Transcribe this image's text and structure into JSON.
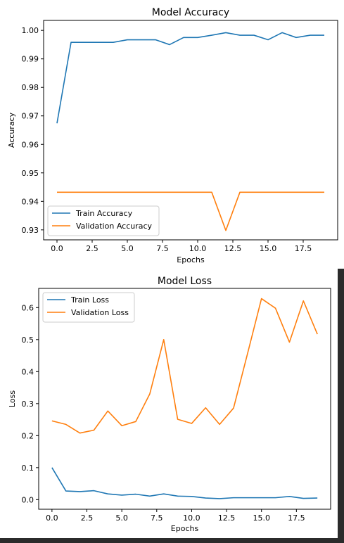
{
  "chart_data": [
    {
      "type": "line",
      "title": "Model Accuracy",
      "xlabel": "Epochs",
      "ylabel": "Accuracy",
      "xlim": [
        -0.95,
        19.95
      ],
      "ylim": [
        0.9265,
        1.0035
      ],
      "xticks": [
        0.0,
        2.5,
        5.0,
        7.5,
        10.0,
        12.5,
        15.0,
        17.5
      ],
      "xtick_labels": [
        "0.0",
        "2.5",
        "5.0",
        "7.5",
        "10.0",
        "12.5",
        "15.0",
        "17.5"
      ],
      "yticks": [
        0.93,
        0.94,
        0.95,
        0.96,
        0.97,
        0.98,
        0.99,
        1.0
      ],
      "ytick_labels": [
        "0.93",
        "0.94",
        "0.95",
        "0.96",
        "0.97",
        "0.98",
        "0.99",
        "1.00"
      ],
      "legend_position": "lower-left",
      "x": [
        0,
        1,
        2,
        3,
        4,
        5,
        6,
        7,
        8,
        9,
        10,
        11,
        12,
        13,
        14,
        15,
        16,
        17,
        18,
        19
      ],
      "series": [
        {
          "name": "Train Accuracy",
          "color": "#1f77b4",
          "values": [
            0.9674,
            0.9958,
            0.9958,
            0.9958,
            0.9958,
            0.9967,
            0.9967,
            0.9967,
            0.995,
            0.9975,
            0.9975,
            0.9983,
            0.9992,
            0.9983,
            0.9983,
            0.9967,
            0.9992,
            0.9975,
            0.9983,
            0.9983
          ]
        },
        {
          "name": "Validation Accuracy",
          "color": "#ff7f0e",
          "values": [
            0.9432,
            0.9432,
            0.9432,
            0.9432,
            0.9432,
            0.9432,
            0.9432,
            0.9432,
            0.9432,
            0.9432,
            0.9432,
            0.9432,
            0.9298,
            0.9432,
            0.9432,
            0.9432,
            0.9432,
            0.9432,
            0.9432,
            0.9432
          ]
        }
      ]
    },
    {
      "type": "line",
      "title": "Model Loss",
      "xlabel": "Epochs",
      "ylabel": "Loss",
      "xlim": [
        -0.95,
        19.95
      ],
      "ylim": [
        -0.03,
        0.66
      ],
      "xticks": [
        0.0,
        2.5,
        5.0,
        7.5,
        10.0,
        12.5,
        15.0,
        17.5
      ],
      "xtick_labels": [
        "0.0",
        "2.5",
        "5.0",
        "7.5",
        "10.0",
        "12.5",
        "15.0",
        "17.5"
      ],
      "yticks": [
        0.0,
        0.1,
        0.2,
        0.3,
        0.4,
        0.5,
        0.6
      ],
      "ytick_labels": [
        "0.0",
        "0.1",
        "0.2",
        "0.3",
        "0.4",
        "0.5",
        "0.6"
      ],
      "legend_position": "upper-left",
      "x": [
        0,
        1,
        2,
        3,
        4,
        5,
        6,
        7,
        8,
        9,
        10,
        11,
        12,
        13,
        14,
        15,
        16,
        17,
        18,
        19
      ],
      "series": [
        {
          "name": "Train Loss",
          "color": "#1f77b4",
          "values": [
            0.1,
            0.027,
            0.025,
            0.028,
            0.018,
            0.014,
            0.017,
            0.011,
            0.018,
            0.011,
            0.01,
            0.005,
            0.003,
            0.006,
            0.006,
            0.006,
            0.006,
            0.01,
            0.004,
            0.005
          ]
        },
        {
          "name": "Validation Loss",
          "color": "#ff7f0e",
          "values": [
            0.246,
            0.235,
            0.208,
            0.217,
            0.277,
            0.231,
            0.244,
            0.33,
            0.5,
            0.251,
            0.238,
            0.287,
            0.235,
            0.286,
            0.456,
            0.628,
            0.598,
            0.492,
            0.621,
            0.517
          ]
        }
      ]
    }
  ]
}
